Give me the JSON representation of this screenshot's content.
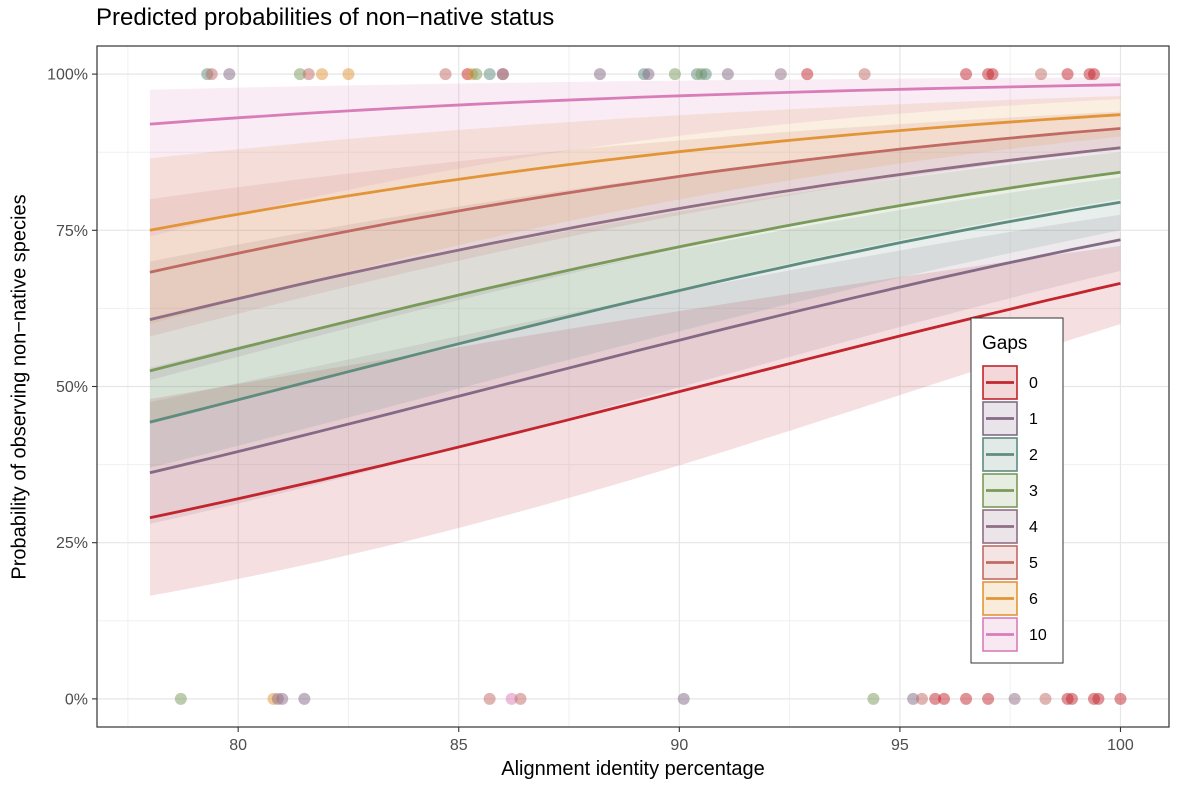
{
  "chart_data": {
    "type": "line",
    "title": "Predicted probabilities of non−native status",
    "xlabel": "Alignment identity percentage",
    "ylabel": "Probability of observing non−native species",
    "xlim": [
      76.8,
      101.1
    ],
    "ylim": [
      -0.045,
      1.045
    ],
    "x_ticks": [
      80,
      85,
      90,
      95,
      100
    ],
    "x_tick_labels": [
      "80",
      "85",
      "90",
      "95",
      "100"
    ],
    "y_ticks": [
      0,
      0.25,
      0.5,
      0.75,
      1.0
    ],
    "y_tick_labels": [
      "0%",
      "25%",
      "50%",
      "75%",
      "100%"
    ],
    "grid": true,
    "legend": {
      "title": "Gaps",
      "position": "right-center"
    },
    "x_range": [
      78,
      100
    ],
    "series": [
      {
        "name": "0",
        "color": "#c2252d",
        "start": 0.29,
        "end": 0.665,
        "lower": [
          0.165,
          0.6
        ],
        "upper": [
          0.48,
          0.725
        ]
      },
      {
        "name": "1",
        "color": "#846a85",
        "start": 0.362,
        "end": 0.735,
        "lower": [
          0.28,
          0.685
        ],
        "upper": [
          0.475,
          0.775
        ]
      },
      {
        "name": "2",
        "color": "#5e8c7e",
        "start": 0.443,
        "end": 0.795,
        "lower": [
          0.37,
          0.75
        ],
        "upper": [
          0.53,
          0.835
        ]
      },
      {
        "name": "3",
        "color": "#7a9a5a",
        "start": 0.525,
        "end": 0.843,
        "lower": [
          0.44,
          0.8
        ],
        "upper": [
          0.61,
          0.875
        ]
      },
      {
        "name": "4",
        "color": "#8f6e86",
        "start": 0.607,
        "end": 0.882,
        "lower": [
          0.51,
          0.845
        ],
        "upper": [
          0.7,
          0.91
        ]
      },
      {
        "name": "5",
        "color": "#c16a64",
        "start": 0.683,
        "end": 0.913,
        "lower": [
          0.58,
          0.88
        ],
        "upper": [
          0.8,
          0.94
        ]
      },
      {
        "name": "6",
        "color": "#e29537",
        "start": 0.75,
        "end": 0.935,
        "lower": [
          0.6,
          0.9
        ],
        "upper": [
          0.865,
          0.965
        ]
      },
      {
        "name": "10",
        "color": "#d97db8",
        "start": 0.92,
        "end": 0.983,
        "lower": [
          0.74,
          0.96
        ],
        "upper": [
          0.975,
          0.995
        ]
      }
    ],
    "points_top": [
      {
        "x": 79.3,
        "g": "2"
      },
      {
        "x": 79.4,
        "g": "5"
      },
      {
        "x": 79.8,
        "g": "1"
      },
      {
        "x": 81.4,
        "g": "3"
      },
      {
        "x": 81.6,
        "g": "5"
      },
      {
        "x": 81.9,
        "g": "6"
      },
      {
        "x": 82.5,
        "g": "6"
      },
      {
        "x": 84.7,
        "g": "5"
      },
      {
        "x": 85.2,
        "g": "0"
      },
      {
        "x": 85.3,
        "g": "6"
      },
      {
        "x": 85.4,
        "g": "3"
      },
      {
        "x": 85.7,
        "g": "2"
      },
      {
        "x": 86.0,
        "g": "5"
      },
      {
        "x": 86.0,
        "g": "4"
      },
      {
        "x": 88.2,
        "g": "1"
      },
      {
        "x": 89.2,
        "g": "2"
      },
      {
        "x": 89.3,
        "g": "1"
      },
      {
        "x": 89.9,
        "g": "3"
      },
      {
        "x": 90.4,
        "g": "2"
      },
      {
        "x": 90.5,
        "g": "3"
      },
      {
        "x": 90.6,
        "g": "2"
      },
      {
        "x": 91.1,
        "g": "1"
      },
      {
        "x": 92.3,
        "g": "4"
      },
      {
        "x": 92.9,
        "g": "0"
      },
      {
        "x": 94.2,
        "g": "5"
      },
      {
        "x": 96.5,
        "g": "0"
      },
      {
        "x": 97.0,
        "g": "0"
      },
      {
        "x": 97.1,
        "g": "0"
      },
      {
        "x": 98.2,
        "g": "5"
      },
      {
        "x": 98.8,
        "g": "0"
      },
      {
        "x": 99.3,
        "g": "0"
      },
      {
        "x": 99.4,
        "g": "0"
      }
    ],
    "points_bottom": [
      {
        "x": 78.7,
        "g": "3"
      },
      {
        "x": 80.8,
        "g": "6"
      },
      {
        "x": 80.9,
        "g": "4"
      },
      {
        "x": 81.0,
        "g": "4"
      },
      {
        "x": 81.5,
        "g": "1"
      },
      {
        "x": 85.7,
        "g": "5"
      },
      {
        "x": 86.2,
        "g": "10"
      },
      {
        "x": 86.4,
        "g": "5"
      },
      {
        "x": 90.1,
        "g": "1"
      },
      {
        "x": 94.4,
        "g": "3"
      },
      {
        "x": 95.3,
        "g": "1"
      },
      {
        "x": 95.5,
        "g": "5"
      },
      {
        "x": 95.8,
        "g": "0"
      },
      {
        "x": 96.0,
        "g": "0"
      },
      {
        "x": 96.5,
        "g": "0"
      },
      {
        "x": 97.0,
        "g": "0"
      },
      {
        "x": 97.6,
        "g": "4"
      },
      {
        "x": 98.3,
        "g": "5"
      },
      {
        "x": 98.8,
        "g": "0"
      },
      {
        "x": 98.9,
        "g": "0"
      },
      {
        "x": 99.4,
        "g": "0"
      },
      {
        "x": 99.5,
        "g": "0"
      },
      {
        "x": 100.0,
        "g": "0"
      }
    ]
  }
}
